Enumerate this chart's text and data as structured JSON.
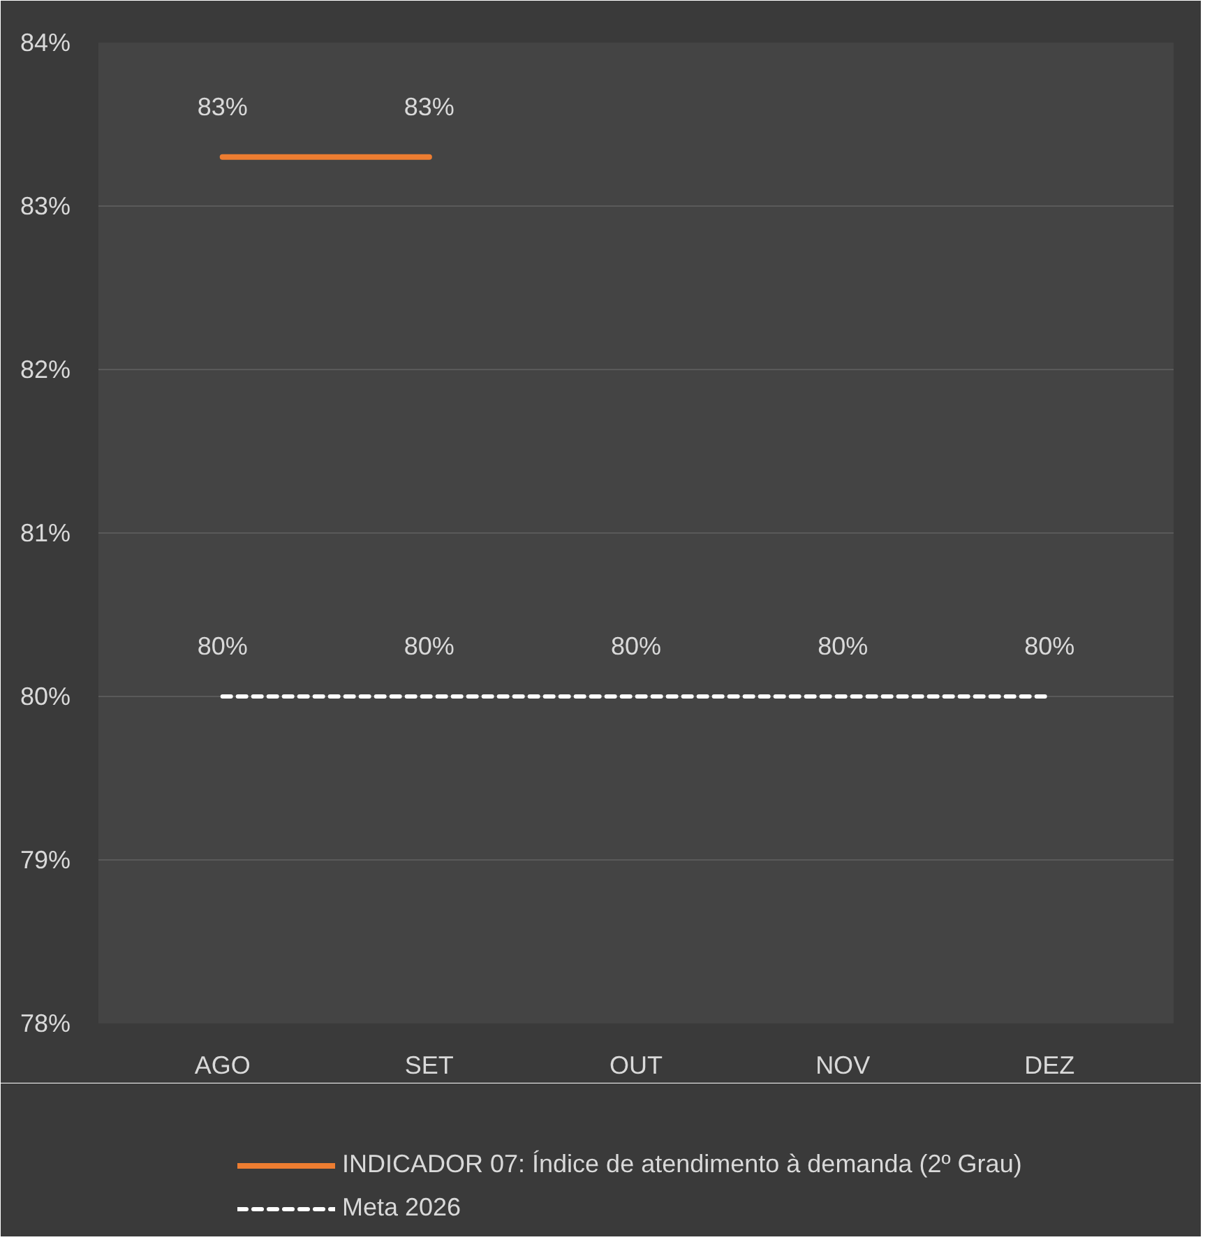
{
  "chart_data": {
    "type": "line",
    "categories": [
      "AGO",
      "SET",
      "OUT",
      "NOV",
      "DEZ"
    ],
    "ylim": [
      78,
      84
    ],
    "yticks": [
      {
        "value": 84,
        "label": "84%"
      },
      {
        "value": 83,
        "label": "83%"
      },
      {
        "value": 82,
        "label": "82%"
      },
      {
        "value": 81,
        "label": "81%"
      },
      {
        "value": 80,
        "label": "80%"
      },
      {
        "value": 79,
        "label": "79%"
      },
      {
        "value": 78,
        "label": "78%"
      }
    ],
    "grid": "y",
    "legend": "bottom",
    "marker": "none",
    "series": [
      {
        "name": "INDICADOR 07: Índice de atendimento à demanda (2º Grau)",
        "color": "#ed7d31",
        "line_style": "solid",
        "values": [
          83.3,
          83.3,
          null,
          null,
          null
        ],
        "value_labels": [
          "83%",
          "83%",
          null,
          null,
          null
        ]
      },
      {
        "name": "Meta 2026",
        "color": "#ffffff",
        "line_style": "dashed",
        "values": [
          80,
          80,
          80,
          80,
          80
        ],
        "value_labels": [
          "80%",
          "80%",
          "80%",
          "80%",
          "80%"
        ]
      }
    ]
  }
}
